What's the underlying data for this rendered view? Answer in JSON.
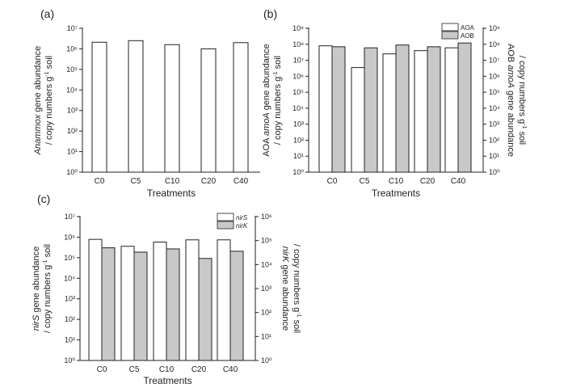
{
  "chart_data": [
    {
      "type": "bar",
      "panel_label": "(a)",
      "categories": [
        "C0",
        "C5",
        "C10",
        "C20",
        "C40"
      ],
      "xlabel": "Treatments",
      "ylabel": [
        [
          {
            "text": "Anammox",
            "italic": true
          },
          {
            "text": " gene abundance"
          }
        ],
        [
          {
            "text": "/ copy numbers g"
          },
          {
            "text": "-1",
            "sup": true
          },
          {
            "text": " soil"
          }
        ]
      ],
      "yscale": "log",
      "ylim": [
        1,
        10000000
      ],
      "yticks": [
        "10⁰",
        "10¹",
        "10²",
        "10³",
        "10⁴",
        "10⁵",
        "10⁶",
        "10⁷"
      ],
      "series": [
        {
          "values": [
            2100000,
            2500000,
            1600000,
            1000000,
            2000000
          ],
          "color": "#ffffff",
          "axis": "left"
        }
      ],
      "grid": false
    },
    {
      "type": "bar",
      "panel_label": "(b)",
      "categories": [
        "C0",
        "C5",
        "C10",
        "C20",
        "C40"
      ],
      "xlabel": "Treatments",
      "ylabel": [
        [
          {
            "text": "AOA "
          },
          {
            "text": "amoA",
            "italic": true
          },
          {
            "text": " gene abundance"
          }
        ],
        [
          {
            "text": "/ copy numbers g"
          },
          {
            "text": "-1",
            "sup": true
          },
          {
            "text": " soil"
          }
        ]
      ],
      "ylabel_right": [
        [
          {
            "text": "AOB "
          },
          {
            "text": "amoA",
            "italic": true
          },
          {
            "text": " gene abundance"
          }
        ],
        [
          {
            "text": "/ copy numbers g"
          },
          {
            "text": "-1",
            "sup": true
          },
          {
            "text": " soil"
          }
        ]
      ],
      "yscale": "log",
      "ylim": [
        1,
        1000000000
      ],
      "yticks": [
        "10⁰",
        "10¹",
        "10²",
        "10³",
        "10⁴",
        "10⁵",
        "10⁶",
        "10⁷",
        "10⁸",
        "10⁹"
      ],
      "ylim_right": [
        1,
        1000000000
      ],
      "yticks_right": [
        "10⁰",
        "10¹",
        "10²",
        "10³",
        "10⁴",
        "10⁵",
        "10⁶",
        "10⁷",
        "10⁸",
        "10⁹"
      ],
      "series": [
        {
          "name": "AOA",
          "italic": false,
          "values": [
            80000000,
            3500000,
            25000000,
            40000000,
            60000000
          ],
          "color": "#ffffff",
          "axis": "left"
        },
        {
          "name": "AOB",
          "italic": false,
          "values": [
            70000000,
            60000000,
            90000000,
            70000000,
            120000000
          ],
          "color": "#c8c8c8",
          "axis": "right"
        }
      ],
      "legend": "top-right",
      "grid": false
    },
    {
      "type": "bar",
      "panel_label": "(c)",
      "categories": [
        "C0",
        "C5",
        "C10",
        "C20",
        "C40"
      ],
      "xlabel": "Treatments",
      "ylabel": [
        [
          {
            "text": "nirS",
            "italic": true
          },
          {
            "text": " gene abundance"
          }
        ],
        [
          {
            "text": "/ copy numbers g"
          },
          {
            "text": "-1",
            "sup": true
          },
          {
            "text": " soil"
          }
        ]
      ],
      "ylabel_right": [
        [
          {
            "text": "nirK",
            "italic": true
          },
          {
            "text": " gene abundance"
          }
        ],
        [
          {
            "text": "/ copy numbers g"
          },
          {
            "text": "-1",
            "sup": true
          },
          {
            "text": " soil"
          }
        ]
      ],
      "yscale": "log",
      "ylim": [
        1,
        10000000
      ],
      "yticks": [
        "10⁰",
        "10¹",
        "10²",
        "10³",
        "10⁴",
        "10⁵",
        "10⁶",
        "10⁷"
      ],
      "ylim_right": [
        1,
        1000000
      ],
      "yticks_right": [
        "10⁰",
        "10¹",
        "10²",
        "10³",
        "10⁴",
        "10⁵",
        "10⁶"
      ],
      "series": [
        {
          "name": "nirS",
          "italic": true,
          "values": [
            780000,
            360000,
            580000,
            740000,
            740000
          ],
          "color": "#ffffff",
          "axis": "left"
        },
        {
          "name": "nirK",
          "italic": true,
          "values": [
            50000,
            33000,
            45000,
            18000,
            36000
          ],
          "color": "#c8c8c8",
          "axis": "right"
        }
      ],
      "legend": "top-right",
      "grid": false
    }
  ]
}
